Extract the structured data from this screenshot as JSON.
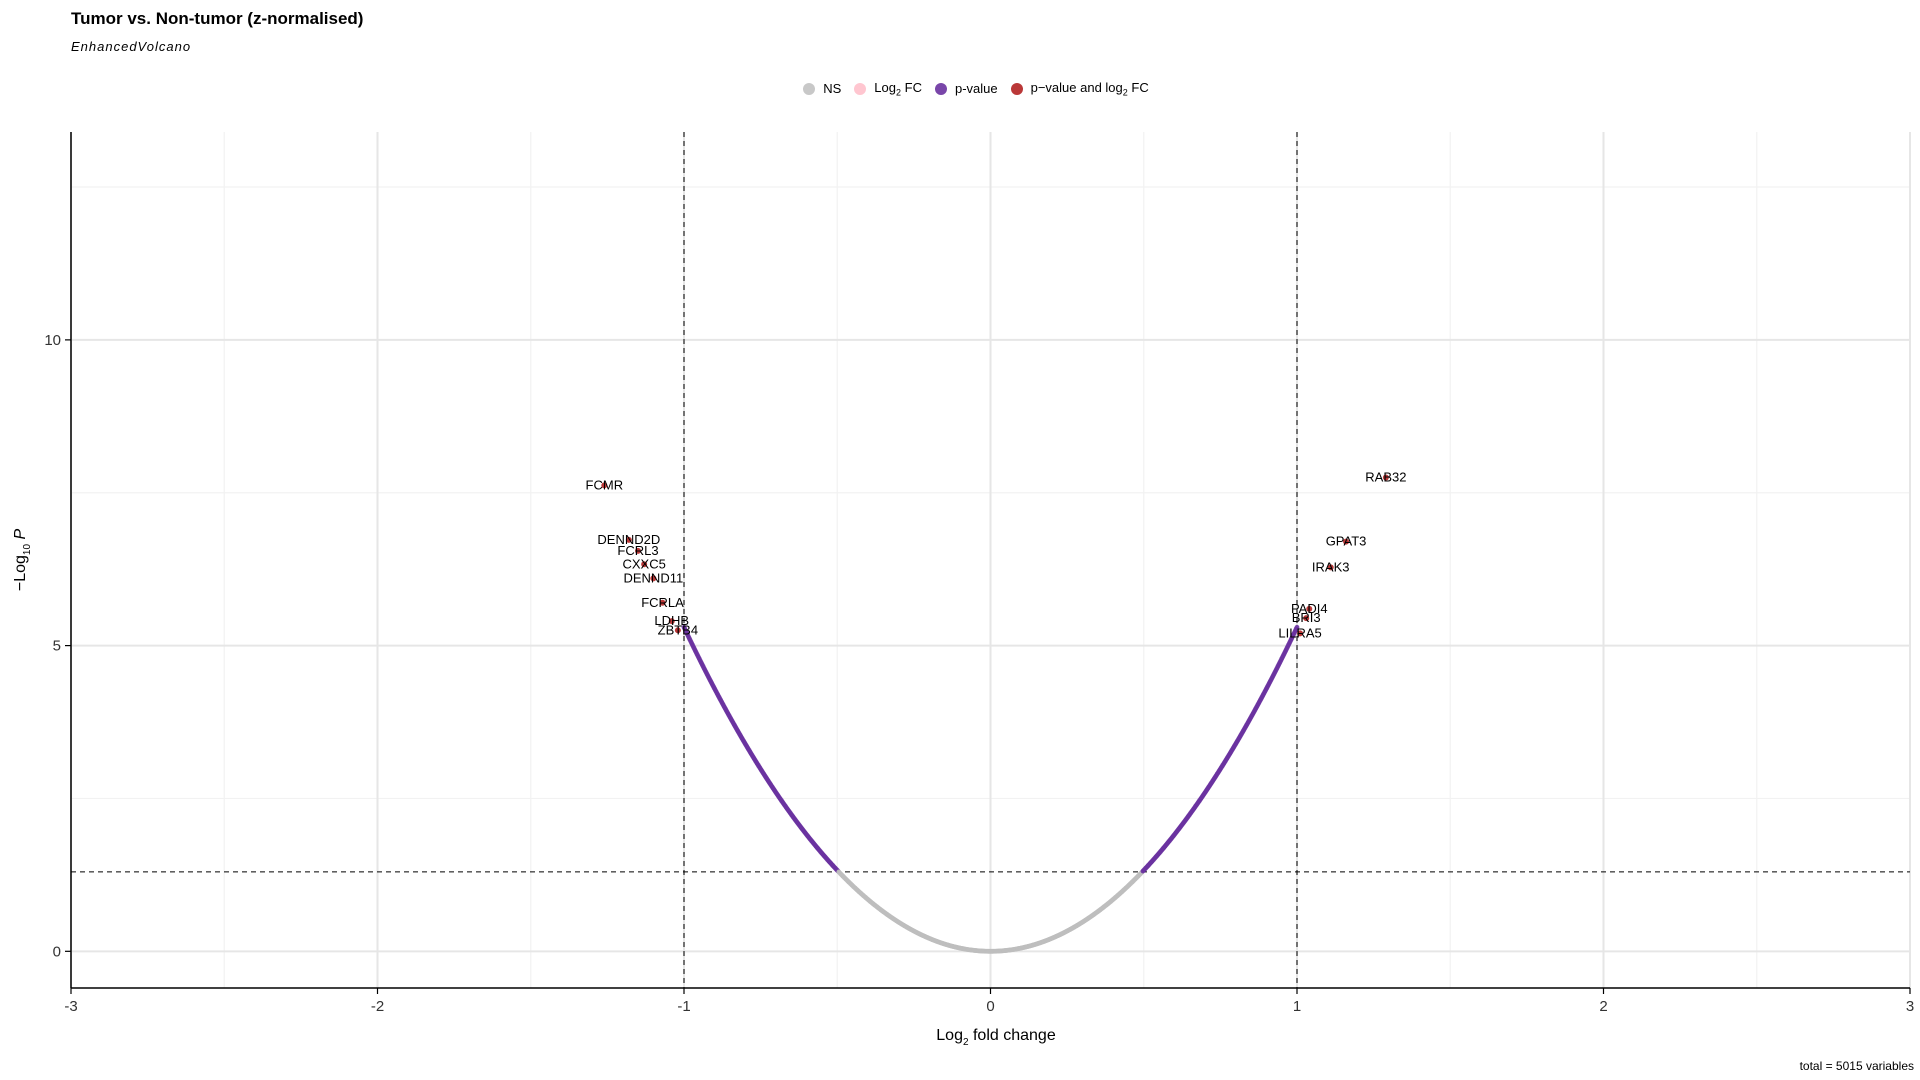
{
  "chart_data": {
    "type": "scatter",
    "title": "Tumor vs. Non-tumor (z-normalised)",
    "subtitle": "EnhancedVolcano",
    "xlabel_main": "Log",
    "xlabel_sub": "2",
    "xlabel_rest": " fold change",
    "ylabel_prefix": "−Log",
    "ylabel_sub": "10",
    "ylabel_rest": " P",
    "xlim": [
      -3,
      3
    ],
    "ylim": [
      -0.6,
      13.4
    ],
    "xticks": [
      -3,
      -2,
      -1,
      0,
      1,
      2,
      3
    ],
    "xtick_labels": [
      "-3",
      "-2",
      "-1",
      "0",
      "1",
      "2",
      "3"
    ],
    "yticks": [
      0,
      5,
      10
    ],
    "ytick_labels": [
      "0",
      "5",
      "10"
    ],
    "fc_cutoff": 1,
    "p_cutoff_log10": 1.3,
    "grid": true,
    "legend_position": "top",
    "legend": [
      {
        "key": "NS",
        "label": "NS",
        "sub": "",
        "label_rest": "",
        "color": "#bebebe"
      },
      {
        "key": "FC",
        "label": "Log",
        "sub": "2",
        "label_rest": " FC",
        "color": "#ffc0cb"
      },
      {
        "key": "P",
        "label": "p-value",
        "sub": "",
        "label_rest": "",
        "color": "#6a32a0"
      },
      {
        "key": "PFC",
        "label": "p−value and log",
        "sub": "2",
        "label_rest": " FC",
        "color": "#b22222"
      }
    ],
    "curve": {
      "description": "points follow y = 5.3 * x^2",
      "k": 5.3
    },
    "labeled_points": [
      {
        "label": "FCMR",
        "x": -1.26,
        "y": 7.62
      },
      {
        "label": "DENND2D",
        "x": -1.18,
        "y": 6.73
      },
      {
        "label": "FCRL3",
        "x": -1.15,
        "y": 6.55
      },
      {
        "label": "CXXC5",
        "x": -1.13,
        "y": 6.33
      },
      {
        "label": "DENND11",
        "x": -1.1,
        "y": 6.1
      },
      {
        "label": "FCRLA",
        "x": -1.07,
        "y": 5.7
      },
      {
        "label": "LDHB",
        "x": -1.04,
        "y": 5.4
      },
      {
        "label": "ZBTB4",
        "x": -1.02,
        "y": 5.25
      },
      {
        "label": "RAB32",
        "x": 1.29,
        "y": 7.75
      },
      {
        "label": "GPAT3",
        "x": 1.16,
        "y": 6.7
      },
      {
        "label": "IRAK3",
        "x": 1.11,
        "y": 6.28
      },
      {
        "label": "PADI4",
        "x": 1.04,
        "y": 5.6
      },
      {
        "label": "BRI3",
        "x": 1.03,
        "y": 5.45
      },
      {
        "label": "LILRA5",
        "x": 1.01,
        "y": 5.2
      }
    ],
    "caption": "total = 5015 variables"
  }
}
